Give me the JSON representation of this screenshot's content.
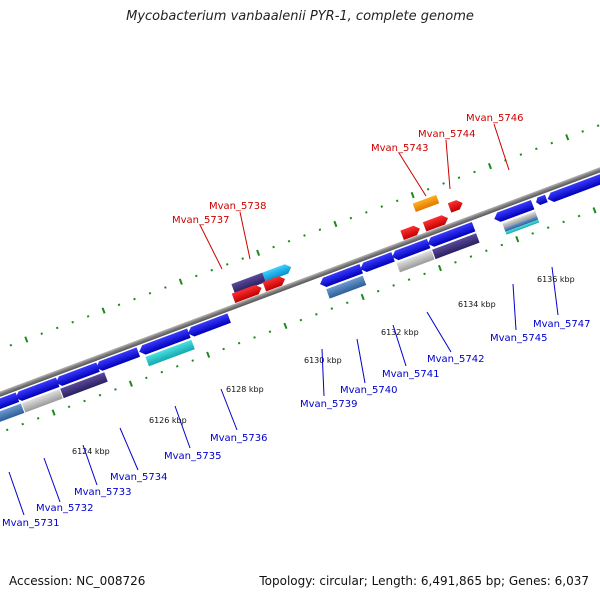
{
  "title": "Mycobacterium vanbaalenii PYR-1, complete genome",
  "footer": {
    "accession": "Accession: NC_008726",
    "summary": "Topology: circular; Length: 6,491,865 bp; Genes: 6,037"
  },
  "colors": {
    "backbone": "#8c8c8c",
    "tick": "#1a8a1a",
    "forward_label": "#cc0000",
    "reverse_label": "#0000cc"
  },
  "kbp_labels": [
    "6124 kbp",
    "6126 kbp",
    "6128 kbp",
    "6130 kbp",
    "6132 kbp",
    "6134 kbp",
    "6136 kbp"
  ],
  "genes_above": [
    {
      "name": "Mvan_5737",
      "color": "#d40000"
    },
    {
      "name": "Mvan_5738",
      "color": "#d40000"
    },
    {
      "name": "Mvan_5743",
      "color": "#d40000"
    },
    {
      "name": "Mvan_5744",
      "color": "#d40000"
    },
    {
      "name": "Mvan_5746",
      "color": "#d40000"
    }
  ],
  "genes_below": [
    {
      "name": "Mvan_5731"
    },
    {
      "name": "Mvan_5732"
    },
    {
      "name": "Mvan_5733"
    },
    {
      "name": "Mvan_5734"
    },
    {
      "name": "Mvan_5735"
    },
    {
      "name": "Mvan_5736"
    },
    {
      "name": "Mvan_5739"
    },
    {
      "name": "Mvan_5740"
    },
    {
      "name": "Mvan_5741"
    },
    {
      "name": "Mvan_5742"
    },
    {
      "name": "Mvan_5745"
    },
    {
      "name": "Mvan_5747"
    }
  ]
}
